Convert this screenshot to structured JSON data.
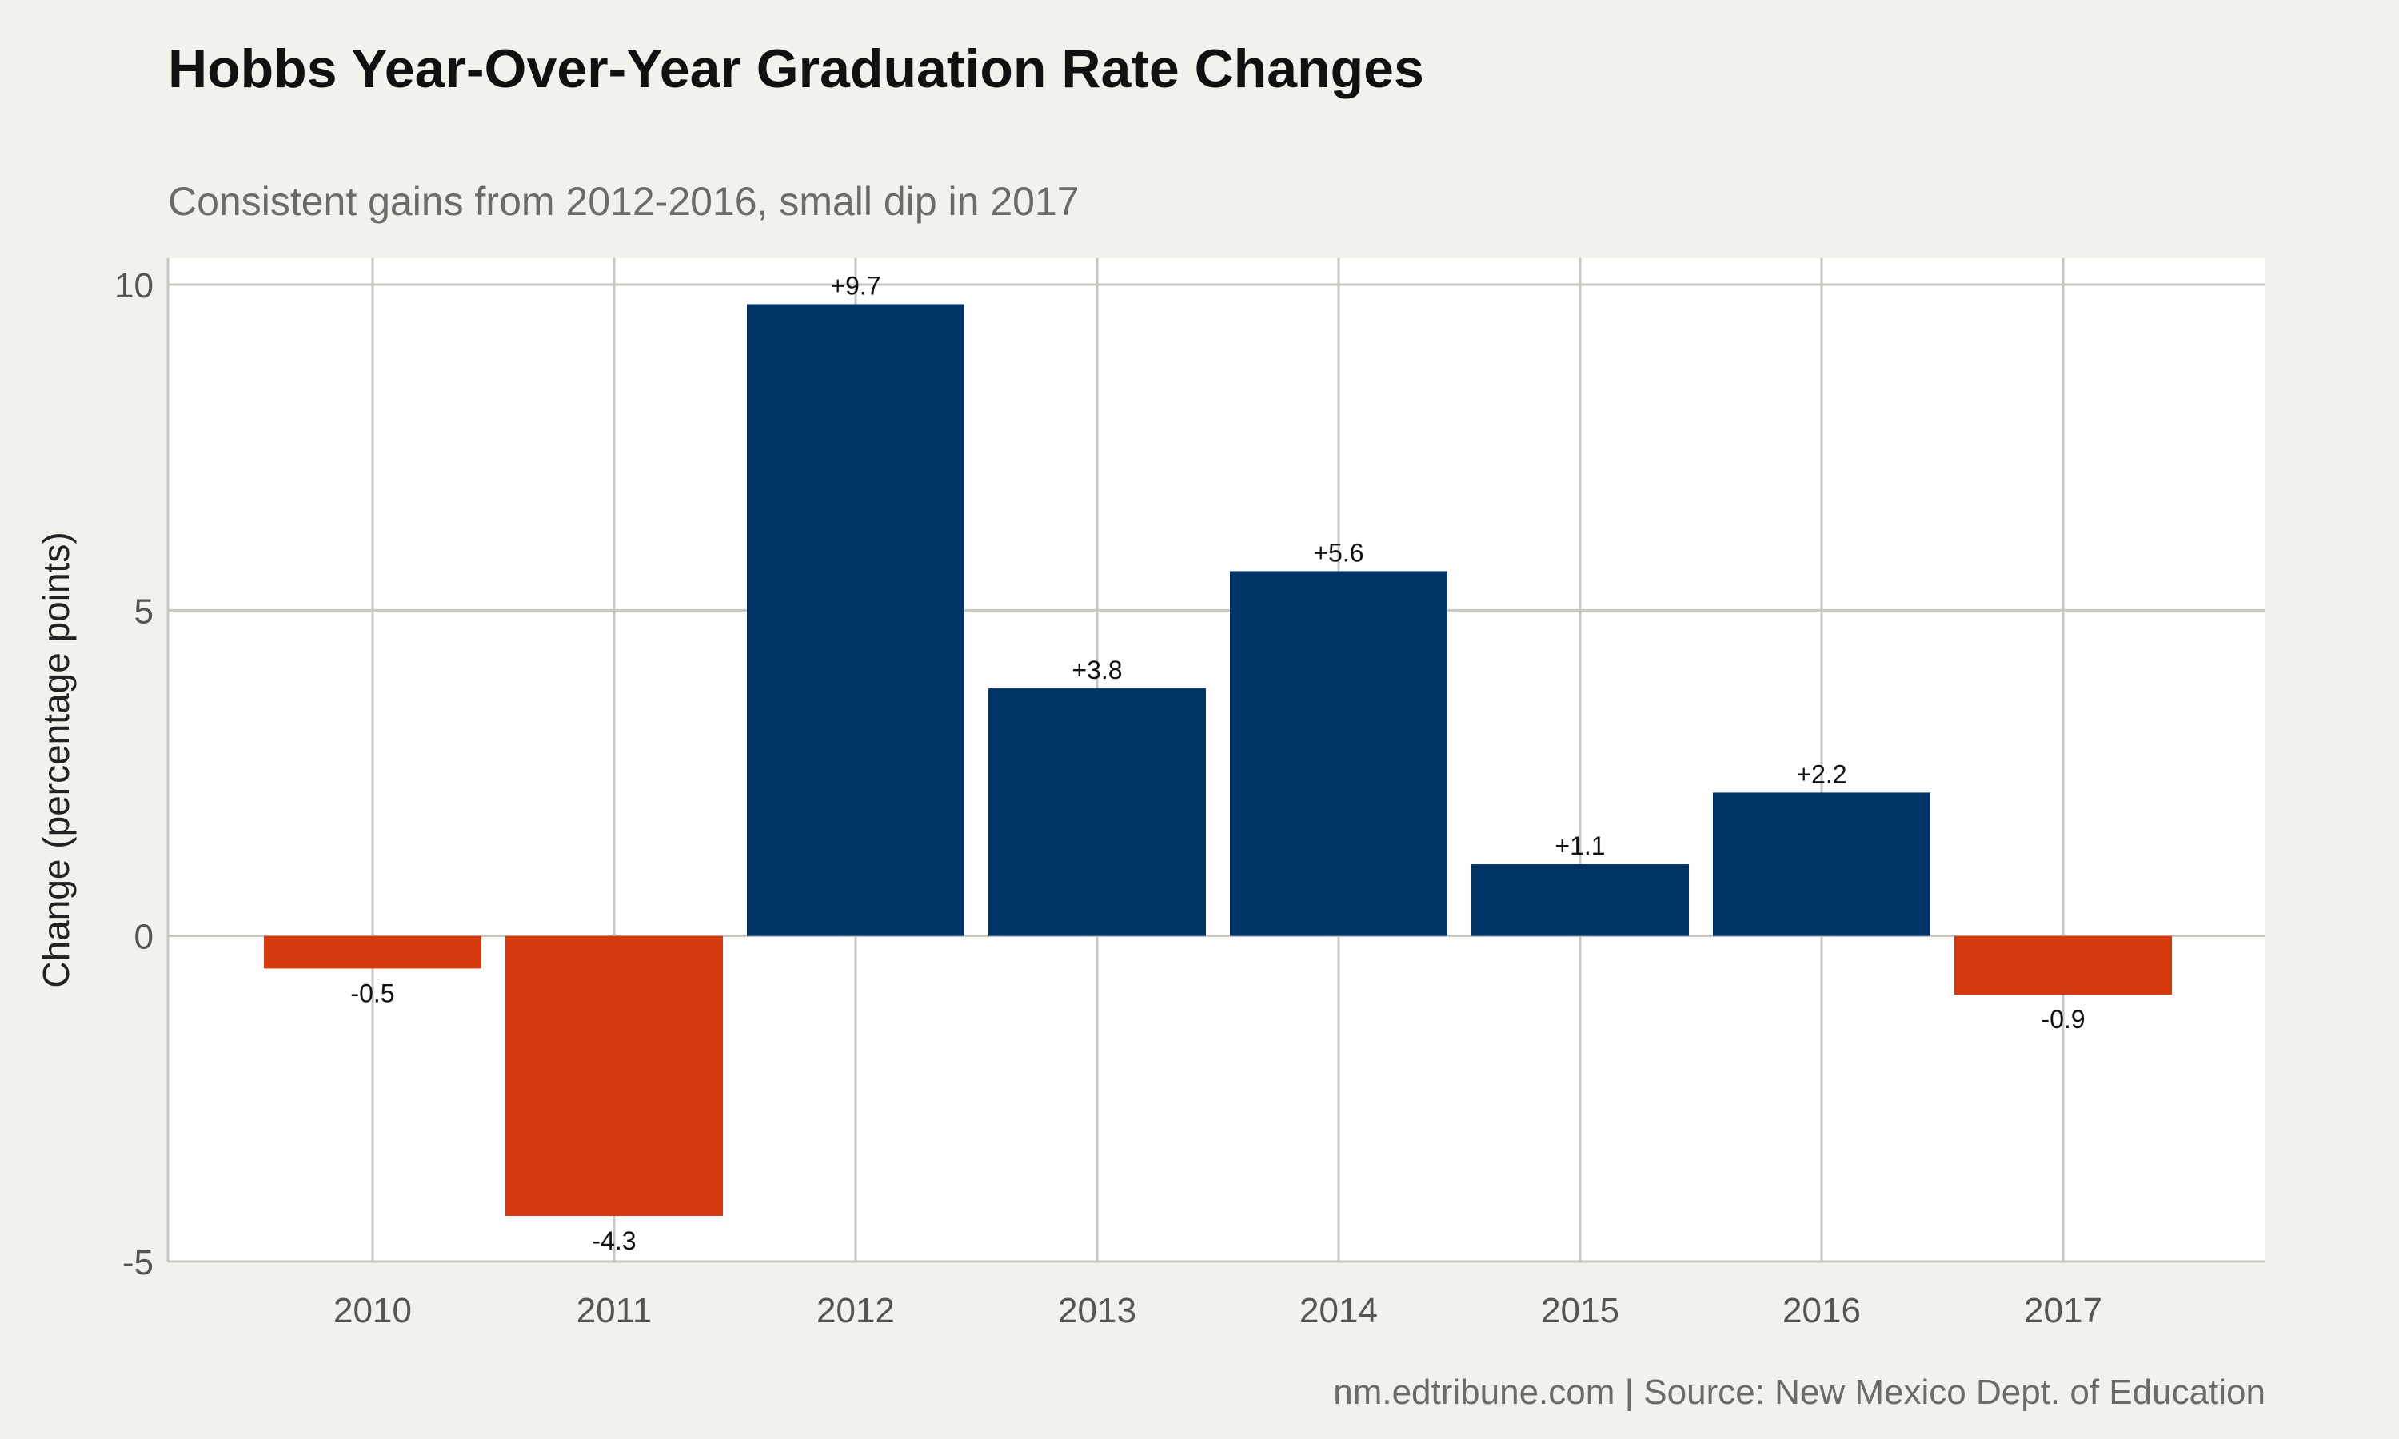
{
  "header": {
    "title": "Hobbs Year-Over-Year Graduation Rate Changes",
    "subtitle": "Consistent gains from 2012-2016, small dip in 2017"
  },
  "footer": {
    "caption": "nm.edtribune.com | Source: New Mexico Dept. of Education"
  },
  "colors": {
    "positive": "#003366",
    "negative": "#d4380d",
    "grid": "#c8c6c0",
    "panel": "#ffffff",
    "background": "#f3f1ec"
  },
  "chart_data": {
    "type": "bar",
    "title": "Hobbs Year-Over-Year Graduation Rate Changes",
    "subtitle": "Consistent gains from 2012-2016, small dip in 2017",
    "xlabel": "",
    "ylabel": "Change (percentage points)",
    "categories": [
      "2010",
      "2011",
      "2012",
      "2013",
      "2014",
      "2015",
      "2016",
      "2017"
    ],
    "values": [
      -0.5,
      -4.3,
      9.7,
      3.8,
      5.6,
      1.1,
      2.2,
      -0.9
    ],
    "data_labels": [
      "-0.5",
      "-4.3",
      "+9.7",
      "+3.8",
      "+5.6",
      "+1.1",
      "+2.2",
      "-0.9"
    ],
    "ylim": [
      -5,
      10
    ],
    "yticks": [
      -5,
      0,
      5,
      10
    ],
    "ytick_labels": [
      "-5",
      "0",
      "5",
      "10"
    ],
    "grid": true,
    "legend": "none"
  }
}
